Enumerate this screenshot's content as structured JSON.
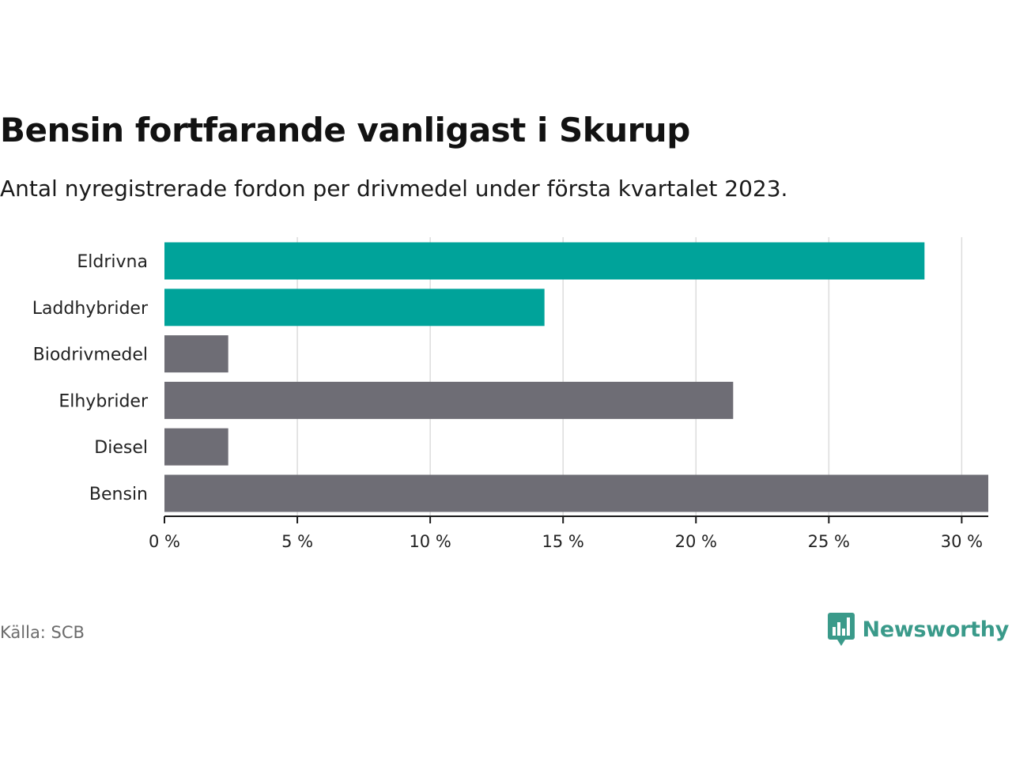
{
  "header": {
    "title": "Bensin fortfarande vanligast i Skurup",
    "subtitle": "Antal nyregistrerade fordon per drivmedel under första kvartalet 2023."
  },
  "footer": {
    "source": "Källa: SCB",
    "brand": "Newsworthy",
    "brand_icon": "bar-chart-speech-bubble-icon",
    "brand_color": "#3a9a8a"
  },
  "chart_data": {
    "type": "bar",
    "orientation": "horizontal",
    "categories": [
      "Eldrivna",
      "Laddhybrider",
      "Biodrivmedel",
      "Elhybrider",
      "Diesel",
      "Bensin"
    ],
    "values": [
      28.6,
      14.3,
      2.4,
      21.4,
      2.4,
      31.0
    ],
    "bar_colors": [
      "#00a39a",
      "#00a39a",
      "#6e6d75",
      "#6e6d75",
      "#6e6d75",
      "#6e6d75"
    ],
    "xlim": [
      0,
      31
    ],
    "xticks": [
      0,
      5,
      10,
      15,
      20,
      25,
      30
    ],
    "xtick_labels": [
      "0 %",
      "5 %",
      "10 %",
      "15 %",
      "20 %",
      "25 %",
      "30 %"
    ],
    "grid": true
  }
}
